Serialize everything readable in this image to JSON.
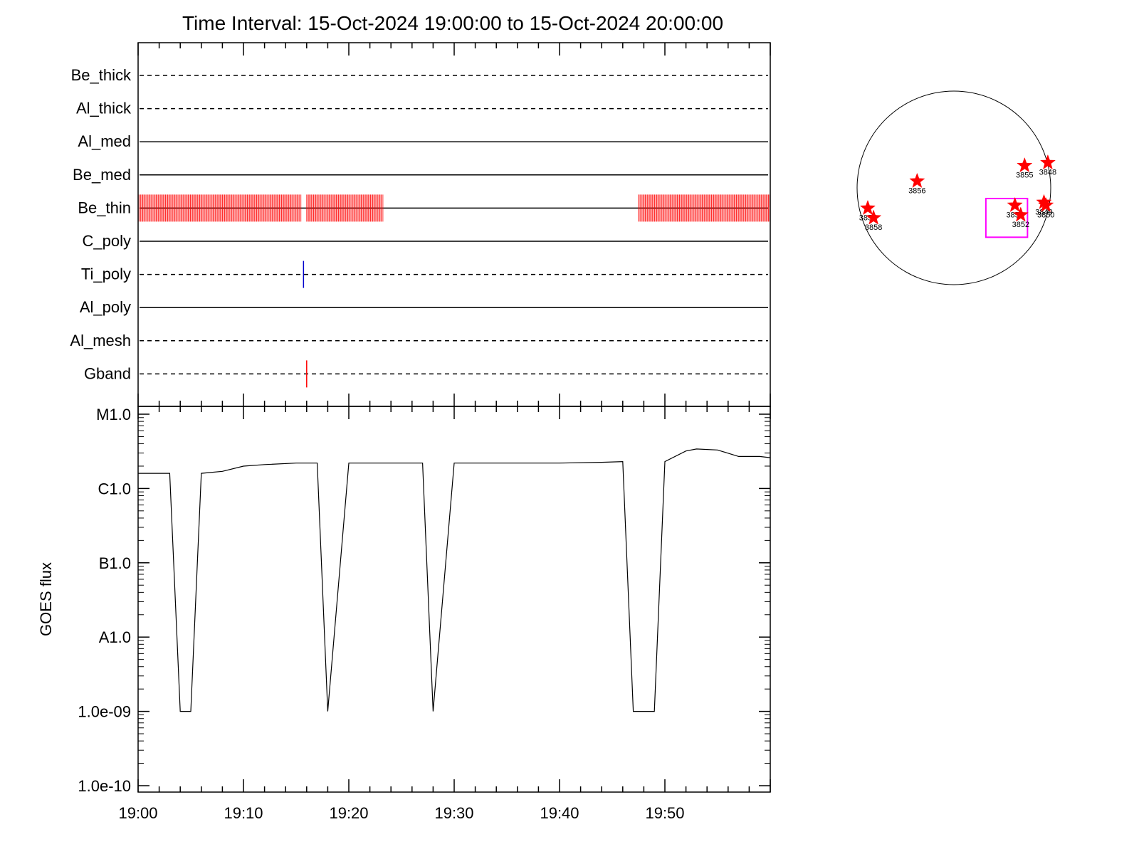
{
  "figure": {
    "title": "Time Interval: 15-Oct-2024 19:00:00 to 15-Oct-2024 20:00:00"
  },
  "chart_data": [
    {
      "type": "timeline",
      "x_range_minutes": [
        0,
        60
      ],
      "channels": [
        {
          "name": "Be_thick",
          "style": "dashed"
        },
        {
          "name": "Al_thick",
          "style": "dashed"
        },
        {
          "name": "Al_med",
          "style": "solid"
        },
        {
          "name": "Be_med",
          "style": "solid"
        },
        {
          "name": "Be_thin",
          "style": "solid",
          "coverage_minutes": [
            [
              0.0,
              15.5
            ],
            [
              16.0,
              23.3
            ],
            [
              47.5,
              60.0
            ]
          ],
          "color": "#ff0000"
        },
        {
          "name": "C_poly",
          "style": "solid"
        },
        {
          "name": "Ti_poly",
          "style": "dashed",
          "events_minutes": [
            15.7
          ],
          "color": "#0000cc"
        },
        {
          "name": "Al_poly",
          "style": "solid"
        },
        {
          "name": "Al_mesh",
          "style": "dashed"
        },
        {
          "name": "Gband",
          "style": "dashed",
          "events_minutes": [
            16.0
          ],
          "color": "#ff0000"
        }
      ]
    },
    {
      "type": "line",
      "ylabel": "GOES flux",
      "yscale": "log",
      "ylim": [
        1e-10,
        1e-05
      ],
      "x_ticks": [
        "19:00",
        "19:10",
        "19:20",
        "19:30",
        "19:40",
        "19:50"
      ],
      "y_ticks": [
        {
          "value": 1e-05,
          "label": "M1.0"
        },
        {
          "value": 1e-06,
          "label": "C1.0"
        },
        {
          "value": 1e-07,
          "label": "B1.0"
        },
        {
          "value": 1e-08,
          "label": "A1.0"
        },
        {
          "value": 1e-09,
          "label": "1.0e-09"
        },
        {
          "value": 1e-10,
          "label": "1.0e-10"
        }
      ],
      "series": [
        {
          "x_minutes": [
            0,
            3,
            4,
            5,
            6,
            8,
            10,
            12,
            15,
            17,
            18,
            20,
            22,
            24,
            26,
            27,
            28,
            30,
            35,
            40,
            44,
            46,
            47,
            48,
            49,
            50,
            52,
            53,
            55,
            57,
            59,
            60
          ],
          "values": [
            1.6e-06,
            1.6e-06,
            1e-09,
            1e-09,
            1.6e-06,
            1.7e-06,
            2e-06,
            2.1e-06,
            2.2e-06,
            2.2e-06,
            1e-09,
            2.2e-06,
            2.2e-06,
            2.2e-06,
            2.2e-06,
            2.2e-06,
            1e-09,
            2.2e-06,
            2.2e-06,
            2.2e-06,
            2.25e-06,
            2.3e-06,
            1e-09,
            1e-09,
            1e-09,
            2.3e-06,
            3.2e-06,
            3.4e-06,
            3.3e-06,
            2.7e-06,
            2.7e-06,
            2.6e-06
          ],
          "color": "#000000"
        }
      ]
    },
    {
      "type": "scatter",
      "plot": "solar-disk",
      "markers": [
        {
          "label": "3857",
          "x": -0.89,
          "y": -0.21
        },
        {
          "label": "3858",
          "x": -0.83,
          "y": -0.31
        },
        {
          "label": "3856",
          "x": -0.38,
          "y": 0.07
        },
        {
          "label": "3854",
          "x": 0.63,
          "y": -0.18
        },
        {
          "label": "3852",
          "x": 0.69,
          "y": -0.28
        },
        {
          "label": "3855",
          "x": 0.73,
          "y": 0.23
        },
        {
          "label": "3848",
          "x": 0.97,
          "y": 0.26
        },
        {
          "label": "3849",
          "x": 0.93,
          "y": -0.15
        },
        {
          "label": "3850",
          "x": 0.95,
          "y": -0.18
        }
      ],
      "fov_box": {
        "x": [
          0.33,
          0.76
        ],
        "y": [
          -0.51,
          -0.11
        ],
        "color": "#ff00ff"
      }
    }
  ]
}
